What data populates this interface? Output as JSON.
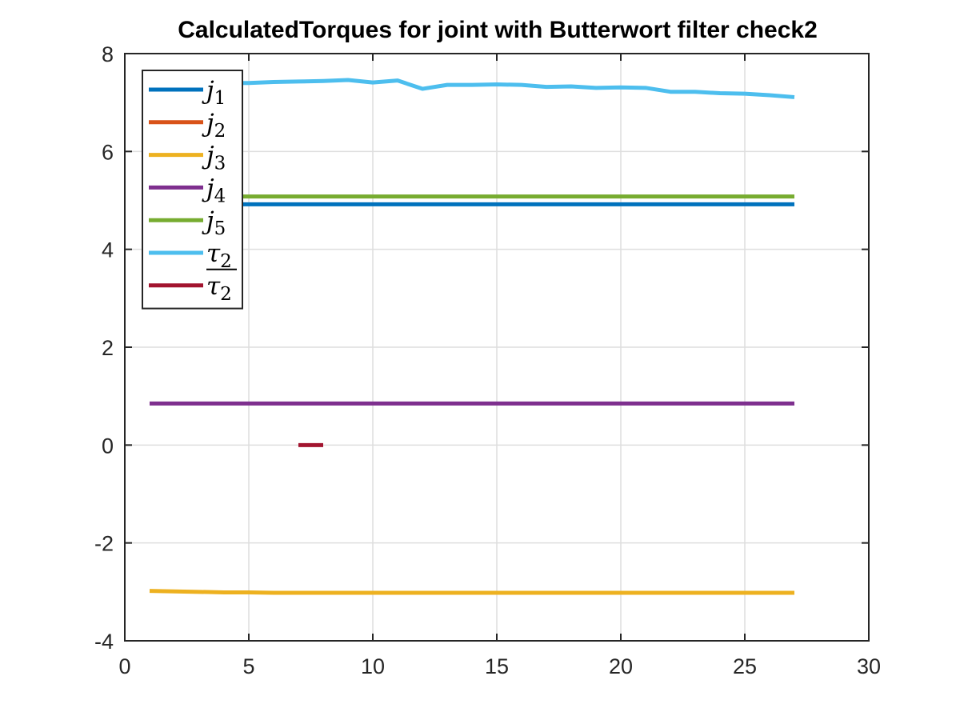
{
  "chart_data": {
    "type": "line",
    "title": "CalculatedTorques for joint with Butterwort filter check2",
    "xlabel": "",
    "ylabel": "",
    "xlim": [
      0,
      30
    ],
    "ylim": [
      -4,
      8
    ],
    "x_ticks": [
      0,
      5,
      10,
      15,
      20,
      25,
      30
    ],
    "y_ticks": [
      -4,
      -2,
      0,
      2,
      4,
      6,
      8
    ],
    "x_tick_labels": [
      "0",
      "5",
      "10",
      "15",
      "20",
      "25",
      "30"
    ],
    "y_tick_labels": [
      "-4",
      "-2",
      "0",
      "2",
      "4",
      "6",
      "8"
    ],
    "grid": true,
    "legend_position": "top-left",
    "series": [
      {
        "legend": {
          "base": "j",
          "sub": "1",
          "overline": false
        },
        "color": "#0072BD",
        "x": [
          1,
          27
        ],
        "y": [
          4.92,
          4.92
        ]
      },
      {
        "legend": {
          "base": "j",
          "sub": "2",
          "overline": false
        },
        "color": "#D95319",
        "x": [],
        "y": []
      },
      {
        "legend": {
          "base": "j",
          "sub": "3",
          "overline": false
        },
        "color": "#EDB120",
        "x": [
          1,
          2,
          3,
          4,
          5,
          6,
          7,
          8,
          9,
          10,
          11,
          12,
          13,
          14,
          15,
          16,
          17,
          18,
          19,
          20,
          21,
          22,
          23,
          24,
          25,
          26,
          27
        ],
        "y": [
          -2.98,
          -2.99,
          -3.0,
          -3.01,
          -3.01,
          -3.02,
          -3.02,
          -3.02,
          -3.02,
          -3.02,
          -3.02,
          -3.02,
          -3.02,
          -3.02,
          -3.02,
          -3.02,
          -3.02,
          -3.02,
          -3.02,
          -3.02,
          -3.02,
          -3.02,
          -3.02,
          -3.02,
          -3.02,
          -3.02,
          -3.02
        ]
      },
      {
        "legend": {
          "base": "j",
          "sub": "4",
          "overline": false
        },
        "color": "#7E2F8E",
        "x": [
          1,
          27
        ],
        "y": [
          0.85,
          0.85
        ]
      },
      {
        "legend": {
          "base": "j",
          "sub": "5",
          "overline": false
        },
        "color": "#77AC30",
        "x": [
          1,
          27
        ],
        "y": [
          5.08,
          5.08
        ]
      },
      {
        "legend": {
          "base": "τ",
          "sub": "2",
          "overline": false
        },
        "color": "#4DBEEE",
        "x": [
          1,
          2,
          3,
          4,
          5,
          6,
          7,
          8,
          9,
          10,
          11,
          12,
          13,
          14,
          15,
          16,
          17,
          18,
          19,
          20,
          21,
          22,
          23,
          24,
          25,
          26,
          27
        ],
        "y": [
          7.35,
          7.37,
          7.38,
          7.4,
          7.4,
          7.42,
          7.43,
          7.44,
          7.46,
          7.41,
          7.45,
          7.28,
          7.36,
          7.36,
          7.37,
          7.36,
          7.32,
          7.33,
          7.3,
          7.31,
          7.3,
          7.22,
          7.22,
          7.19,
          7.18,
          7.15,
          7.11
        ]
      },
      {
        "legend": {
          "base": "τ",
          "sub": "2",
          "overline": true
        },
        "color": "#A2142F",
        "x": [
          7,
          8
        ],
        "y": [
          0.0,
          0.0
        ]
      }
    ]
  }
}
